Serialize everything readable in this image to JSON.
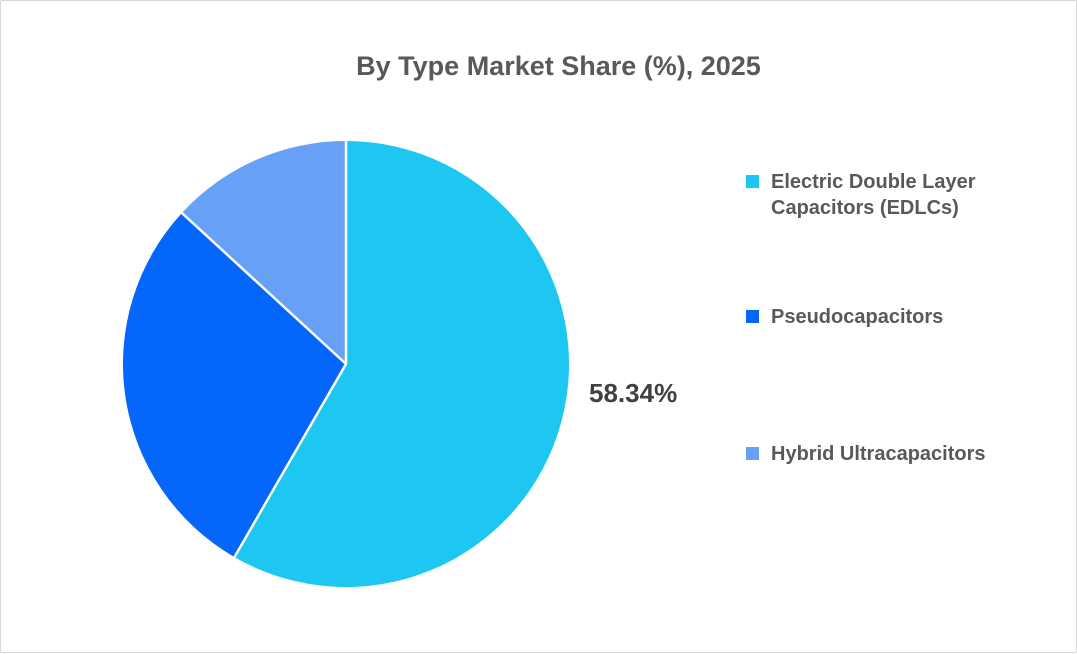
{
  "window": {
    "background": "#ffffff",
    "border_color": "#d6d6d6"
  },
  "chart_data": {
    "type": "pie",
    "title": "By Type Market Share (%), 2025",
    "legend_position": "right",
    "direction": "clockwise",
    "start_angle_deg": 0,
    "separator_color": "#ffffff",
    "text_colors": {
      "title": "#595959",
      "legend": "#595959",
      "data_label": "#404040"
    },
    "slices": [
      {
        "label": "Electric Double Layer Capacitors (EDLCs)",
        "value": 58.34,
        "color": "#1EC7F2",
        "data_label": "58.34%",
        "value_estimated": false
      },
      {
        "label": "Pseudocapacitors",
        "value": 28.5,
        "color": "#0566FB",
        "data_label": "",
        "value_estimated": true
      },
      {
        "label": "Hybrid Ultracapacitors",
        "value": 13.16,
        "color": "#66A0F7",
        "data_label": "",
        "value_estimated": true
      }
    ]
  }
}
